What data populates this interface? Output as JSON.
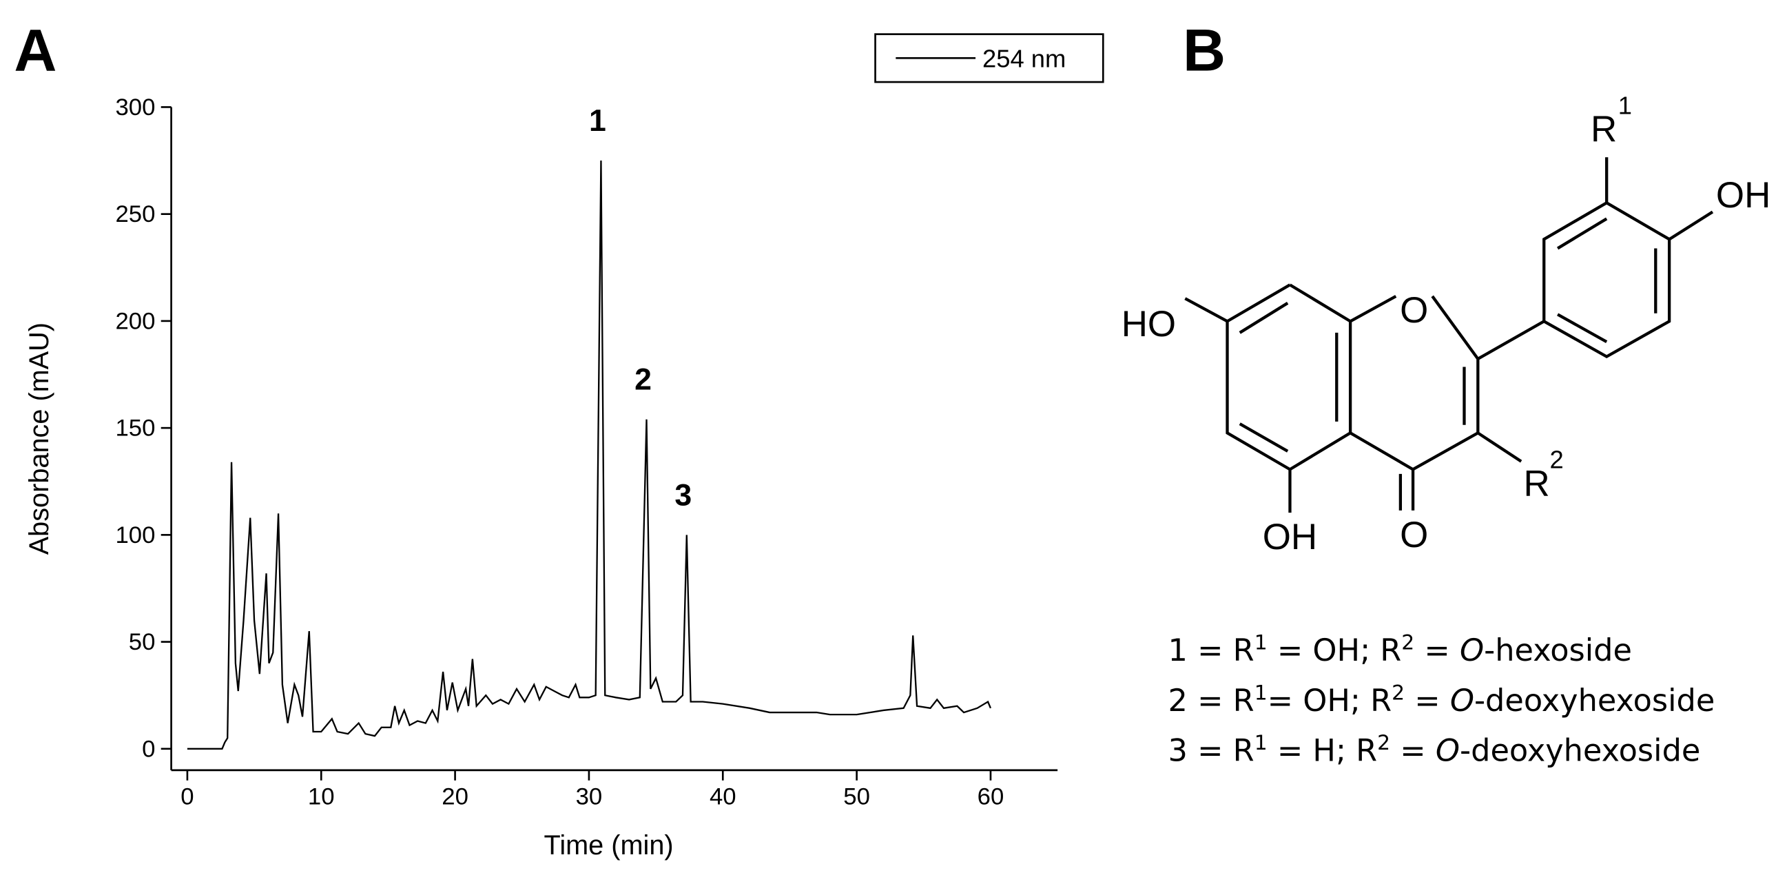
{
  "panels": [
    "A",
    "B"
  ],
  "chart_data": {
    "type": "line",
    "xlabel": "Time (min)",
    "ylabel": "Absorbance (mAU)",
    "xlim": [
      -1.2,
      65
    ],
    "ylim": [
      -10,
      300
    ],
    "xticks": [
      0,
      10,
      20,
      30,
      40,
      50,
      60
    ],
    "yticks": [
      0,
      50,
      100,
      150,
      200,
      250,
      300
    ],
    "grid": false,
    "legend": "top-right",
    "x": [
      0,
      2.6,
      2.8,
      3.0,
      3.3,
      3.6,
      3.8,
      4.2,
      4.7,
      5.0,
      5.4,
      5.9,
      6.1,
      6.4,
      6.8,
      7.1,
      7.5,
      8.0,
      8.3,
      8.6,
      9.1,
      9.4,
      10,
      10.8,
      11.2,
      12,
      12.8,
      13.3,
      14,
      14.5,
      15.2,
      15.5,
      15.8,
      16.2,
      16.6,
      17.2,
      17.8,
      18.3,
      18.7,
      19.1,
      19.4,
      19.8,
      20.2,
      20.8,
      21.0,
      21.3,
      21.6,
      22.3,
      22.8,
      23.4,
      24,
      24.6,
      25.2,
      25.9,
      26.3,
      26.8,
      27.4,
      28,
      28.5,
      29,
      29.3,
      30,
      30.5,
      30.9,
      31.2,
      32,
      33,
      33.8,
      34.3,
      34.6,
      35,
      35.5,
      36.5,
      37.0,
      37.3,
      37.6,
      38.5,
      40,
      42,
      43.5,
      45,
      47,
      48,
      50,
      52,
      53.5,
      54.0,
      54.2,
      54.5,
      55.5,
      56,
      56.5,
      57.5,
      58,
      59,
      59.8,
      60
    ],
    "series": [
      {
        "name": "254 nm",
        "color": "#000000",
        "values": [
          0,
          0,
          3,
          5,
          134,
          40,
          27,
          60,
          108,
          60,
          35,
          82,
          40,
          45,
          110,
          30,
          12,
          30,
          25,
          15,
          55,
          8,
          8,
          14,
          8,
          7,
          12,
          7,
          6,
          10,
          10,
          20,
          12,
          18,
          11,
          13,
          12,
          18,
          13,
          36,
          18,
          31,
          18,
          28,
          20,
          42,
          20,
          25,
          21,
          23,
          21,
          28,
          22,
          30,
          23,
          29,
          27,
          25,
          24,
          30,
          24,
          24,
          25,
          275,
          25,
          24,
          23,
          24,
          154,
          28,
          33,
          22,
          22,
          25,
          100,
          22,
          22,
          21,
          19,
          17,
          17,
          17,
          16,
          16,
          18,
          19,
          25,
          53,
          20,
          19,
          23,
          19,
          20,
          17,
          19,
          22,
          19
        ]
      }
    ],
    "annotations": [
      {
        "text": "1",
        "x": 30.9,
        "y": 275
      },
      {
        "text": "2",
        "x": 34.3,
        "y": 154
      },
      {
        "text": "3",
        "x": 37.3,
        "y": 100
      }
    ]
  },
  "structure": {
    "atoms": [
      "HO",
      "O",
      "OH",
      "O",
      "OH",
      "R",
      "1",
      "R",
      "2"
    ],
    "legend": [
      [
        "1 = R",
        "1",
        " = OH; R",
        "2",
        " = ",
        "O",
        "-hexoside"
      ],
      [
        "2 = R",
        "1",
        "= OH; R",
        "2",
        " = ",
        "O",
        "-deoxyhexoside"
      ],
      [
        "3 = R",
        "1",
        " = H; R",
        "2",
        " = ",
        "O",
        "-deoxyhexoside"
      ]
    ]
  }
}
